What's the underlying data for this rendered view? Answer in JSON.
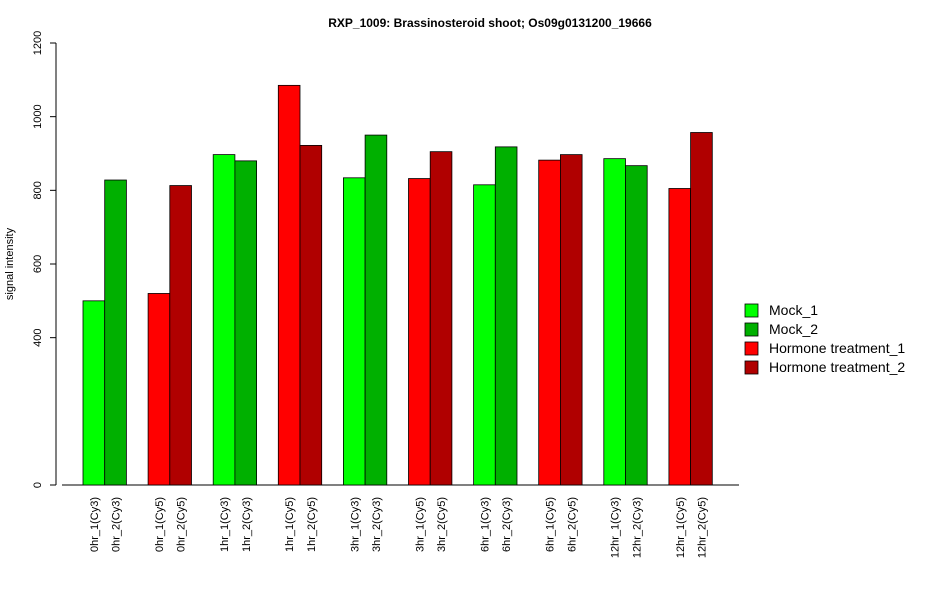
{
  "chart_data": {
    "type": "bar",
    "title": "RXP_1009: Brassinosteroid shoot; Os09g0131200_19666",
    "xlabel": "",
    "ylabel": "signal intensity",
    "yticks": [
      0,
      400,
      600,
      800,
      1000,
      1200
    ],
    "ylim": [
      0,
      1200
    ],
    "categories": [
      "0hr_1(Cy3)",
      "0hr_2(Cy3)",
      "0hr_1(Cy5)",
      "0hr_2(Cy5)",
      "1hr_1(Cy3)",
      "1hr_2(Cy3)",
      "1hr_1(Cy5)",
      "1hr_2(Cy5)",
      "3hr_1(Cy3)",
      "3hr_2(Cy3)",
      "3hr_1(Cy5)",
      "3hr_2(Cy5)",
      "6hr_1(Cy3)",
      "6hr_2(Cy3)",
      "6hr_1(Cy5)",
      "6hr_2(Cy5)",
      "12hr_1(Cy3)",
      "12hr_2(Cy3)",
      "12hr_1(Cy5)",
      "12hr_2(Cy5)"
    ],
    "values": [
      500,
      828,
      520,
      813,
      897,
      880,
      1085,
      922,
      834,
      950,
      832,
      905,
      815,
      918,
      882,
      897,
      886,
      867,
      805,
      957
    ],
    "series_index": [
      0,
      1,
      2,
      3,
      0,
      1,
      2,
      3,
      0,
      1,
      2,
      3,
      0,
      1,
      2,
      3,
      0,
      1,
      2,
      3
    ],
    "series": [
      {
        "name": "Mock_1",
        "color": "#00ff00"
      },
      {
        "name": "Mock_2",
        "color": "#00b000"
      },
      {
        "name": "Hormone treatment_1",
        "color": "#ff0000"
      },
      {
        "name": "Hormone treatment_2",
        "color": "#b00000"
      }
    ],
    "grid": false,
    "legend_position": "right"
  }
}
